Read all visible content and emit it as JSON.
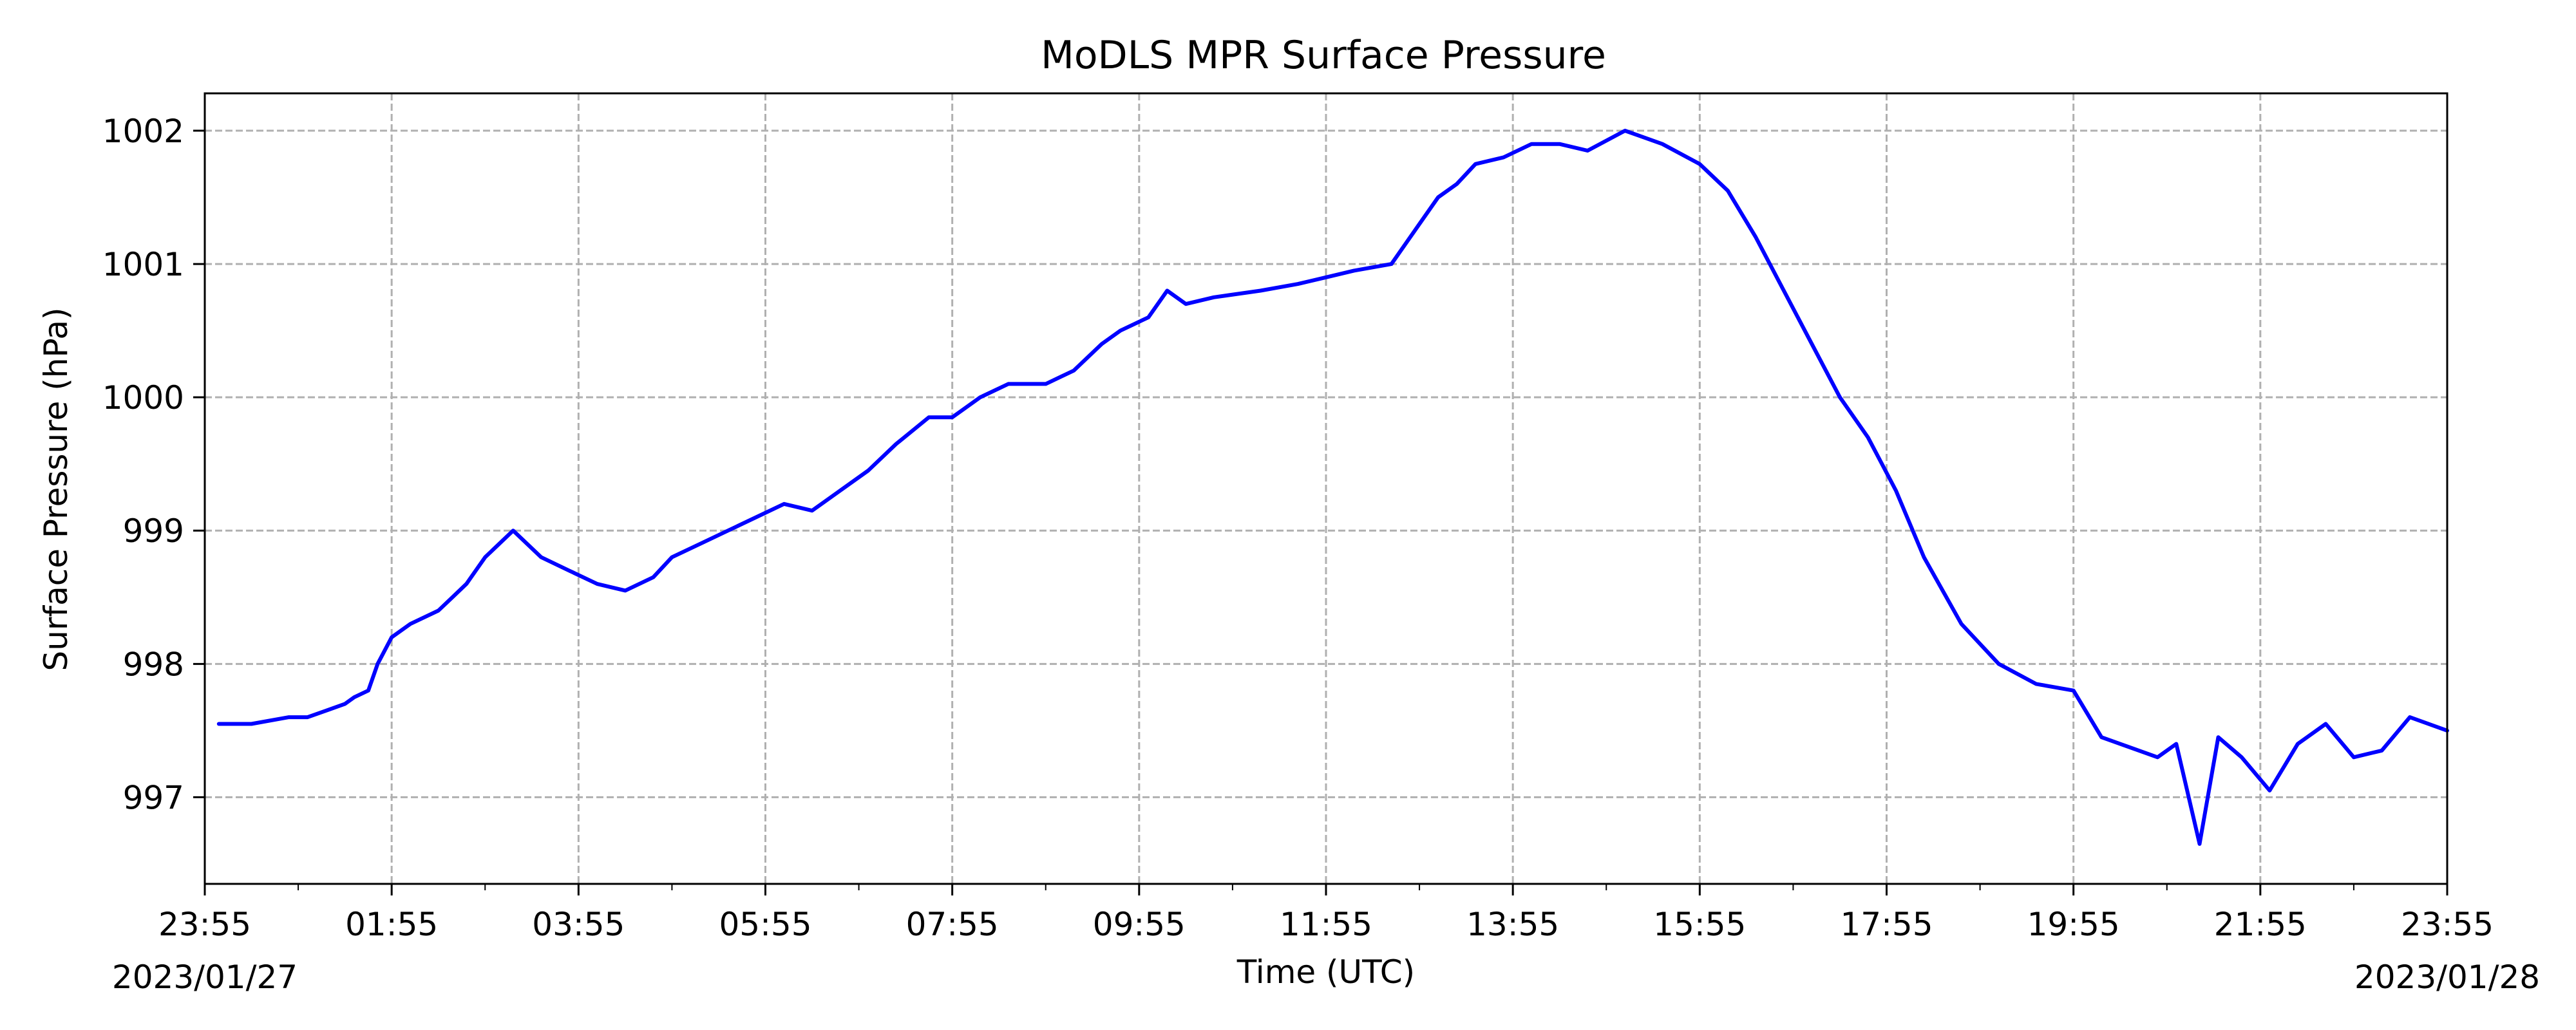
{
  "chart_data": {
    "type": "line",
    "title": "MoDLS MPR Surface Pressure",
    "xlabel": "Time (UTC)",
    "ylabel": "Surface Pressure (hPa)",
    "x_tick_labels": [
      "23:55",
      "01:55",
      "03:55",
      "05:55",
      "07:55",
      "09:55",
      "11:55",
      "13:55",
      "15:55",
      "17:55",
      "19:55",
      "21:55",
      "23:55"
    ],
    "x_tick_hours": [
      0,
      2,
      4,
      6,
      8,
      10,
      12,
      14,
      16,
      18,
      20,
      22,
      24
    ],
    "date_labels": {
      "start": "2023/01/27",
      "end": "2023/01/28"
    },
    "xlim": [
      0,
      24
    ],
    "ylim": [
      996.35,
      1002.28
    ],
    "y_ticks": [
      997,
      998,
      999,
      1000,
      1001,
      1002
    ],
    "grid": true,
    "series": [
      {
        "color": "#0000ff",
        "x": [
          0.15,
          0.3,
          0.5,
          0.9,
          1.1,
          1.3,
          1.5,
          1.6,
          1.75,
          1.85,
          2.0,
          2.2,
          2.5,
          2.65,
          2.8,
          3.0,
          3.3,
          3.6,
          3.9,
          4.2,
          4.5,
          4.8,
          5.0,
          5.3,
          5.6,
          5.9,
          6.2,
          6.5,
          6.8,
          7.1,
          7.4,
          7.75,
          8.0,
          8.3,
          8.6,
          9.0,
          9.3,
          9.6,
          9.8,
          10.1,
          10.3,
          10.5,
          10.8,
          11.3,
          11.7,
          12.0,
          12.3,
          12.7,
          13.0,
          13.2,
          13.4,
          13.6,
          13.9,
          14.2,
          14.5,
          14.8,
          15.2,
          15.6,
          16.0,
          16.3,
          16.6,
          16.9,
          17.2,
          17.5,
          17.8,
          18.1,
          18.4,
          18.8,
          19.2,
          19.6,
          20.0,
          20.3,
          20.7,
          20.9,
          21.1,
          21.2,
          21.35,
          21.55,
          21.8,
          22.1,
          22.4,
          22.7,
          23.0,
          23.3,
          23.6,
          24.0
        ],
        "y": [
          997.55,
          997.55,
          997.55,
          997.6,
          997.6,
          997.65,
          997.7,
          997.75,
          997.8,
          998.0,
          998.2,
          998.3,
          998.4,
          998.5,
          998.6,
          998.8,
          999.0,
          998.8,
          998.7,
          998.6,
          998.55,
          998.65,
          998.8,
          998.9,
          999.0,
          999.1,
          999.2,
          999.15,
          999.3,
          999.45,
          999.65,
          999.85,
          999.85,
          1000.0,
          1000.1,
          1000.1,
          1000.2,
          1000.4,
          1000.5,
          1000.6,
          1000.8,
          1000.7,
          1000.75,
          1000.8,
          1000.85,
          1000.9,
          1000.95,
          1001.0,
          1001.3,
          1001.5,
          1001.6,
          1001.75,
          1001.8,
          1001.9,
          1001.9,
          1001.85,
          1002.0,
          1001.9,
          1001.75,
          1001.55,
          1001.2,
          1000.8,
          1000.4,
          1000.0,
          999.7,
          999.3,
          998.8,
          998.3,
          998.0,
          997.85,
          997.8,
          997.45,
          997.35,
          997.3,
          997.4,
          997.1,
          996.65,
          997.45,
          997.3,
          997.05,
          997.4,
          997.55,
          997.3,
          997.35,
          997.6,
          997.5
        ]
      }
    ]
  }
}
